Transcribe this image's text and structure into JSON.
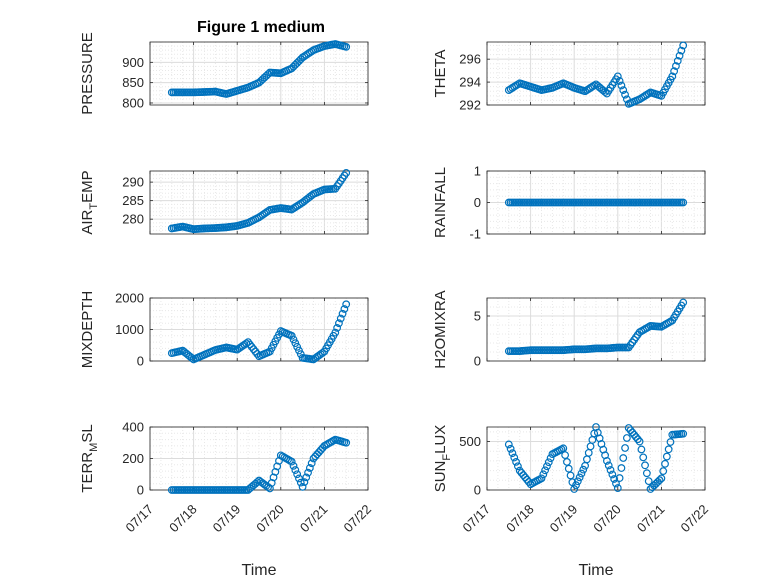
{
  "chart_data": [
    {
      "type": "scatter",
      "title": "Figure 1 medium",
      "ylabel": "PRESSURE",
      "xlabel": "",
      "ylim": [
        795,
        950
      ],
      "yticks": [
        800,
        850,
        900
      ],
      "ytick_labels": [
        "800",
        "850",
        "900"
      ],
      "xlim": [
        "07/17",
        "07/22"
      ],
      "grid": true,
      "series": [
        {
          "x": [
            "07/17 12:00",
            "07/17 18:00",
            "07/18 00:00",
            "07/18 06:00",
            "07/18 12:00",
            "07/18 18:00",
            "07/19 00:00",
            "07/19 06:00",
            "07/19 12:00",
            "07/19 18:00",
            "07/20 00:00",
            "07/20 06:00",
            "07/20 12:00",
            "07/20 18:00",
            "07/21 00:00",
            "07/21 06:00",
            "07/21 12:00"
          ],
          "y": [
            826,
            826,
            826,
            827,
            828,
            822,
            830,
            838,
            850,
            875,
            873,
            885,
            912,
            930,
            940,
            945,
            938
          ]
        }
      ]
    },
    {
      "type": "scatter",
      "title": "",
      "ylabel": "THETA",
      "xlabel": "",
      "ylim": [
        292,
        297.5
      ],
      "yticks": [
        292,
        294,
        296
      ],
      "ytick_labels": [
        "292",
        "294",
        "296"
      ],
      "xlim": [
        "07/17",
        "07/22"
      ],
      "grid": true,
      "series": [
        {
          "x": [
            "07/17 12:00",
            "07/17 18:00",
            "07/18 00:00",
            "07/18 06:00",
            "07/18 12:00",
            "07/18 18:00",
            "07/19 00:00",
            "07/19 06:00",
            "07/19 12:00",
            "07/19 18:00",
            "07/20 00:00",
            "07/20 06:00",
            "07/20 12:00",
            "07/20 18:00",
            "07/21 00:00",
            "07/21 06:00",
            "07/21 12:00"
          ],
          "y": [
            293.3,
            293.9,
            293.6,
            293.3,
            293.5,
            293.9,
            293.5,
            293.2,
            293.8,
            293.0,
            294.5,
            292.1,
            292.5,
            293.1,
            292.8,
            294.5,
            297.2
          ]
        }
      ]
    },
    {
      "type": "scatter",
      "title": "",
      "ylabel": "AIR_TEMP",
      "ylabel_main": "AIR",
      "ylabel_sub": "T",
      "ylabel_rest": "EMP",
      "xlabel": "",
      "ylim": [
        276,
        293
      ],
      "yticks": [
        280,
        285,
        290
      ],
      "ytick_labels": [
        "280",
        "285",
        "290"
      ],
      "xlim": [
        "07/17",
        "07/22"
      ],
      "grid": true,
      "series": [
        {
          "x": [
            "07/17 12:00",
            "07/17 18:00",
            "07/18 00:00",
            "07/18 06:00",
            "07/18 12:00",
            "07/18 18:00",
            "07/19 00:00",
            "07/19 06:00",
            "07/19 12:00",
            "07/19 18:00",
            "07/20 00:00",
            "07/20 06:00",
            "07/20 12:00",
            "07/20 18:00",
            "07/21 00:00",
            "07/21 06:00",
            "07/21 12:00"
          ],
          "y": [
            277.5,
            278.0,
            277.3,
            277.5,
            277.6,
            277.8,
            278.2,
            279.0,
            280.5,
            282.5,
            283.0,
            282.6,
            284.5,
            286.8,
            288.0,
            288.2,
            292.5
          ]
        }
      ]
    },
    {
      "type": "scatter",
      "title": "",
      "ylabel": "RAINFALL",
      "xlabel": "",
      "ylim": [
        -1,
        1
      ],
      "yticks": [
        -1,
        0,
        1
      ],
      "ytick_labels": [
        "-1",
        "0",
        "1"
      ],
      "xlim": [
        "07/17",
        "07/22"
      ],
      "grid": true,
      "series": [
        {
          "x": [
            "07/17 12:00",
            "07/17 18:00",
            "07/18 00:00",
            "07/18 06:00",
            "07/18 12:00",
            "07/18 18:00",
            "07/19 00:00",
            "07/19 06:00",
            "07/19 12:00",
            "07/19 18:00",
            "07/20 00:00",
            "07/20 06:00",
            "07/20 12:00",
            "07/20 18:00",
            "07/21 00:00",
            "07/21 06:00",
            "07/21 12:00"
          ],
          "y": [
            0,
            0,
            0,
            0,
            0,
            0,
            0,
            0,
            0,
            0,
            0,
            0,
            0,
            0,
            0,
            0,
            0
          ]
        }
      ]
    },
    {
      "type": "scatter",
      "title": "",
      "ylabel": "MIXDEPTH",
      "xlabel": "",
      "ylim": [
        0,
        2000
      ],
      "yticks": [
        0,
        1000,
        2000
      ],
      "ytick_labels": [
        "0",
        "1000",
        "2000"
      ],
      "xlim": [
        "07/17",
        "07/22"
      ],
      "grid": true,
      "series": [
        {
          "x": [
            "07/17 12:00",
            "07/17 18:00",
            "07/18 00:00",
            "07/18 06:00",
            "07/18 12:00",
            "07/18 18:00",
            "07/19 00:00",
            "07/19 06:00",
            "07/19 12:00",
            "07/19 18:00",
            "07/20 00:00",
            "07/20 06:00",
            "07/20 12:00",
            "07/20 18:00",
            "07/21 00:00",
            "07/21 06:00",
            "07/21 12:00"
          ],
          "y": [
            250,
            330,
            50,
            200,
            350,
            430,
            360,
            600,
            150,
            300,
            950,
            800,
            100,
            50,
            300,
            900,
            1800
          ]
        }
      ]
    },
    {
      "type": "scatter",
      "title": "",
      "ylabel": "H2OMIXRA",
      "xlabel": "",
      "ylim": [
        0,
        7
      ],
      "yticks": [
        0,
        5
      ],
      "ytick_labels": [
        "0",
        "5"
      ],
      "xlim": [
        "07/17",
        "07/22"
      ],
      "grid": true,
      "series": [
        {
          "x": [
            "07/17 12:00",
            "07/17 18:00",
            "07/18 00:00",
            "07/18 06:00",
            "07/18 12:00",
            "07/18 18:00",
            "07/19 00:00",
            "07/19 06:00",
            "07/19 12:00",
            "07/19 18:00",
            "07/20 00:00",
            "07/20 06:00",
            "07/20 12:00",
            "07/20 18:00",
            "07/21 00:00",
            "07/21 06:00",
            "07/21 12:00"
          ],
          "y": [
            1.1,
            1.1,
            1.2,
            1.2,
            1.2,
            1.2,
            1.3,
            1.3,
            1.4,
            1.4,
            1.5,
            1.5,
            3.2,
            3.9,
            3.8,
            4.5,
            6.5
          ]
        }
      ]
    },
    {
      "type": "scatter",
      "title": "",
      "ylabel": "TERR_MSL",
      "ylabel_main": "TERR",
      "ylabel_sub": "M",
      "ylabel_rest": "SL",
      "xlabel": "Time",
      "ylim": [
        0,
        400
      ],
      "yticks": [
        0,
        200,
        400
      ],
      "ytick_labels": [
        "0",
        "200",
        "400"
      ],
      "xlim": [
        "07/17",
        "07/22"
      ],
      "xticks": [
        "07/17",
        "07/18",
        "07/19",
        "07/20",
        "07/21",
        "07/22"
      ],
      "grid": true,
      "series": [
        {
          "x": [
            "07/17 12:00",
            "07/17 18:00",
            "07/18 00:00",
            "07/18 06:00",
            "07/18 12:00",
            "07/18 18:00",
            "07/19 00:00",
            "07/19 06:00",
            "07/19 12:00",
            "07/19 18:00",
            "07/20 00:00",
            "07/20 06:00",
            "07/20 12:00",
            "07/20 18:00",
            "07/21 00:00",
            "07/21 06:00",
            "07/21 12:00"
          ],
          "y": [
            0,
            0,
            0,
            0,
            0,
            0,
            0,
            0,
            60,
            10,
            220,
            180,
            20,
            200,
            280,
            320,
            300
          ]
        }
      ]
    },
    {
      "type": "scatter",
      "title": "",
      "ylabel": "SUN_FLUX",
      "ylabel_main": "SUN",
      "ylabel_sub": "F",
      "ylabel_rest": "LUX",
      "xlabel": "Time",
      "ylim": [
        0,
        650
      ],
      "yticks": [
        0,
        500
      ],
      "ytick_labels": [
        "0",
        "500"
      ],
      "xlim": [
        "07/17",
        "07/22"
      ],
      "xticks": [
        "07/17",
        "07/18",
        "07/19",
        "07/20",
        "07/21",
        "07/22"
      ],
      "grid": true,
      "series": [
        {
          "x": [
            "07/17 12:00",
            "07/17 18:00",
            "07/18 00:00",
            "07/18 06:00",
            "07/18 12:00",
            "07/18 18:00",
            "07/19 00:00",
            "07/19 06:00",
            "07/19 12:00",
            "07/19 18:00",
            "07/20 00:00",
            "07/20 06:00",
            "07/20 12:00",
            "07/20 18:00",
            "07/21 00:00",
            "07/21 06:00",
            "07/21 12:00"
          ],
          "y": [
            470,
            200,
            60,
            120,
            370,
            430,
            10,
            250,
            650,
            300,
            20,
            640,
            500,
            10,
            120,
            570,
            580
          ]
        }
      ]
    }
  ],
  "colors": {
    "marker": "#0072BD",
    "grid": "#d9d9d9",
    "axis": "#262626"
  }
}
